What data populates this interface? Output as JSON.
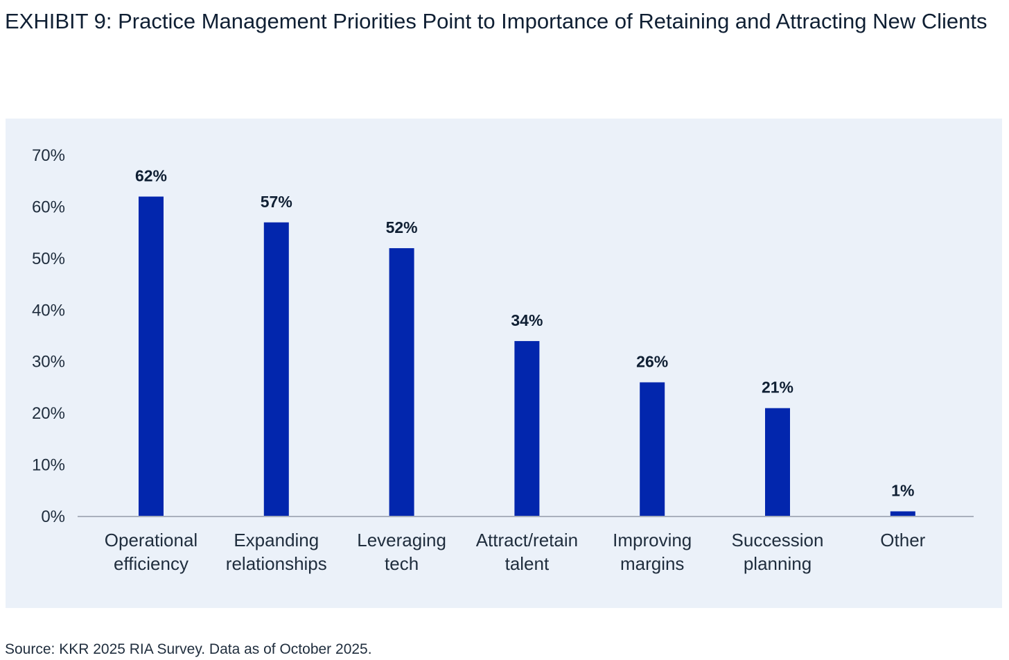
{
  "header": {
    "title": "EXHIBIT 9: Practice Management Priorities Point to Importance of Retaining and Attracting New Clients"
  },
  "footer": {
    "source": "Source: KKR 2025 RIA Survey. Data as of October 2025."
  },
  "colors": {
    "bar": "#0226ad",
    "axis": "#a9b0bd",
    "panel": "#ebf1f9"
  },
  "chart_data": {
    "type": "bar",
    "title": "EXHIBIT 9: Practice Management Priorities Point to Importance of Retaining and Attracting New Clients",
    "xlabel": "",
    "ylabel": "",
    "ylim": [
      0,
      70
    ],
    "yticks": [
      0,
      10,
      20,
      30,
      40,
      50,
      60,
      70
    ],
    "ytick_labels": [
      "0%",
      "10%",
      "20%",
      "30%",
      "40%",
      "50%",
      "60%",
      "70%"
    ],
    "grid": false,
    "legend": "none",
    "categories": [
      [
        "Operational",
        "efficiency"
      ],
      [
        "Expanding",
        "relationships"
      ],
      [
        "Leveraging",
        "tech"
      ],
      [
        "Attract/retain",
        "talent"
      ],
      [
        "Improving",
        "margins"
      ],
      [
        "Succession",
        "planning"
      ],
      [
        "Other"
      ]
    ],
    "values": [
      62,
      57,
      52,
      34,
      26,
      21,
      1
    ],
    "data_labels": [
      "62%",
      "57%",
      "52%",
      "34%",
      "26%",
      "21%",
      "1%"
    ]
  }
}
